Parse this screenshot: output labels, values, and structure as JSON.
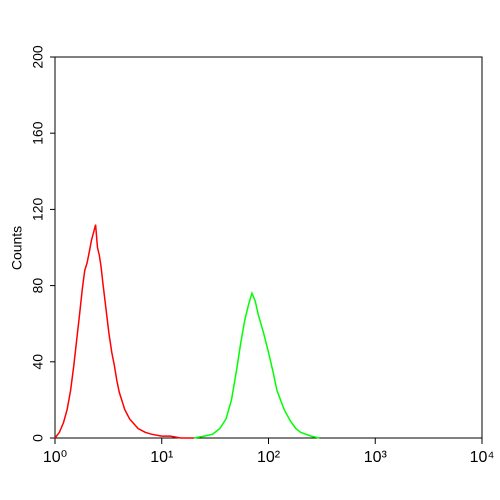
{
  "chart_data": {
    "type": "line",
    "y_label": "Counts",
    "log_x": true,
    "xlim": [
      1,
      10000
    ],
    "xticks": [
      {
        "value": 1,
        "label": "10⁰"
      },
      {
        "value": 10,
        "label": "10¹"
      },
      {
        "value": 100,
        "label": "10²"
      },
      {
        "value": 1000,
        "label": "10³"
      },
      {
        "value": 10000,
        "label": "10⁴"
      }
    ],
    "ylim": [
      0,
      200
    ],
    "yticks": [
      0,
      40,
      80,
      120,
      160,
      200
    ],
    "series": [
      {
        "color": "#ff0000",
        "x": [
          1.0,
          1.1,
          1.2,
          1.3,
          1.4,
          1.5,
          1.6,
          1.7,
          1.8,
          1.9,
          2.0,
          2.1,
          2.2,
          2.3,
          2.4,
          2.5,
          2.6,
          2.7,
          2.8,
          3.0,
          3.2,
          3.4,
          3.6,
          3.8,
          4.0,
          4.5,
          5,
          6,
          7,
          8,
          10,
          12,
          15,
          20
        ],
        "values": [
          0,
          3,
          8,
          15,
          25,
          38,
          52,
          65,
          78,
          88,
          92,
          98,
          104,
          108,
          112,
          100,
          96,
          90,
          82,
          68,
          55,
          45,
          38,
          30,
          24,
          15,
          10,
          5,
          3,
          2,
          1,
          1,
          0,
          0
        ]
      },
      {
        "color": "#00ff00",
        "x": [
          20,
          25,
          30,
          35,
          40,
          45,
          50,
          55,
          60,
          65,
          70,
          75,
          80,
          90,
          100,
          110,
          120,
          140,
          160,
          180,
          200,
          250,
          300
        ],
        "values": [
          0,
          1,
          2,
          5,
          10,
          20,
          35,
          50,
          62,
          70,
          76,
          72,
          65,
          55,
          45,
          35,
          25,
          15,
          9,
          5,
          3,
          1,
          0
        ]
      }
    ]
  }
}
